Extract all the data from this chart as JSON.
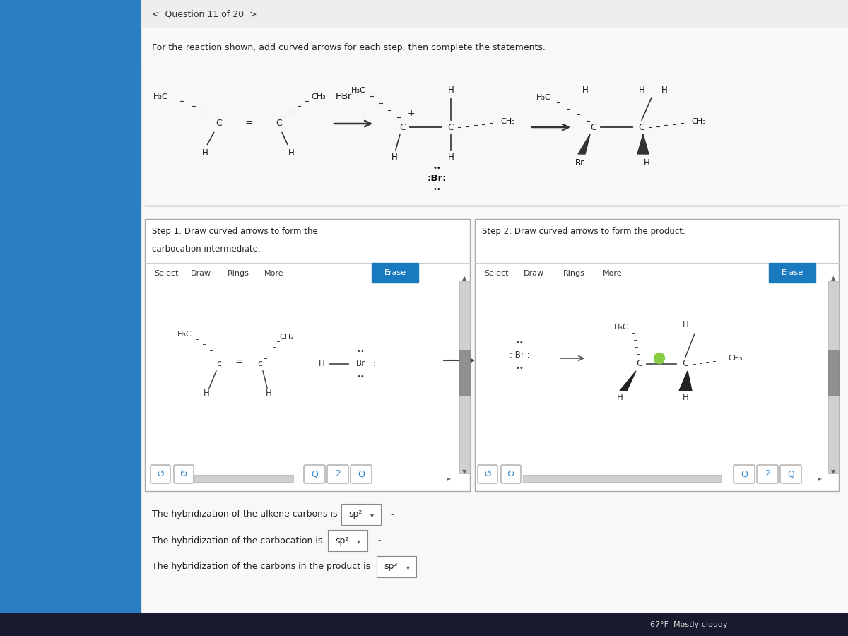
{
  "title": "Question 11 of 20",
  "instruction": "For the reaction shown, add curved arrows for each step, then complete the statements.",
  "background_color": "#f0f0f0",
  "panel_color": "#ffffff",
  "step1_title_line1": "Step 1: Draw curved arrows to form the",
  "step1_title_line2": "carbocation intermediate.",
  "step2_title": "Step 2: Draw curved arrows to form the product.",
  "toolbar_items": [
    "Select",
    "Draw",
    "Rings",
    "More"
  ],
  "erase_button": "Erase",
  "statement1": "The hybridization of the alkene carbons is",
  "statement2": "The hybridization of the carbocation is",
  "statement3": "The hybridization of the carbons in the product is",
  "answer1": "sp²",
  "answer2": "sp²",
  "answer3": "sp³",
  "footer_text": "67°F  Mostly cloudy",
  "blue_sidebar": "#2b7ec1",
  "erase_btn_color": "#1a7abf",
  "scroll_gray": "#909090",
  "scroll_light": "#d0d0d0"
}
